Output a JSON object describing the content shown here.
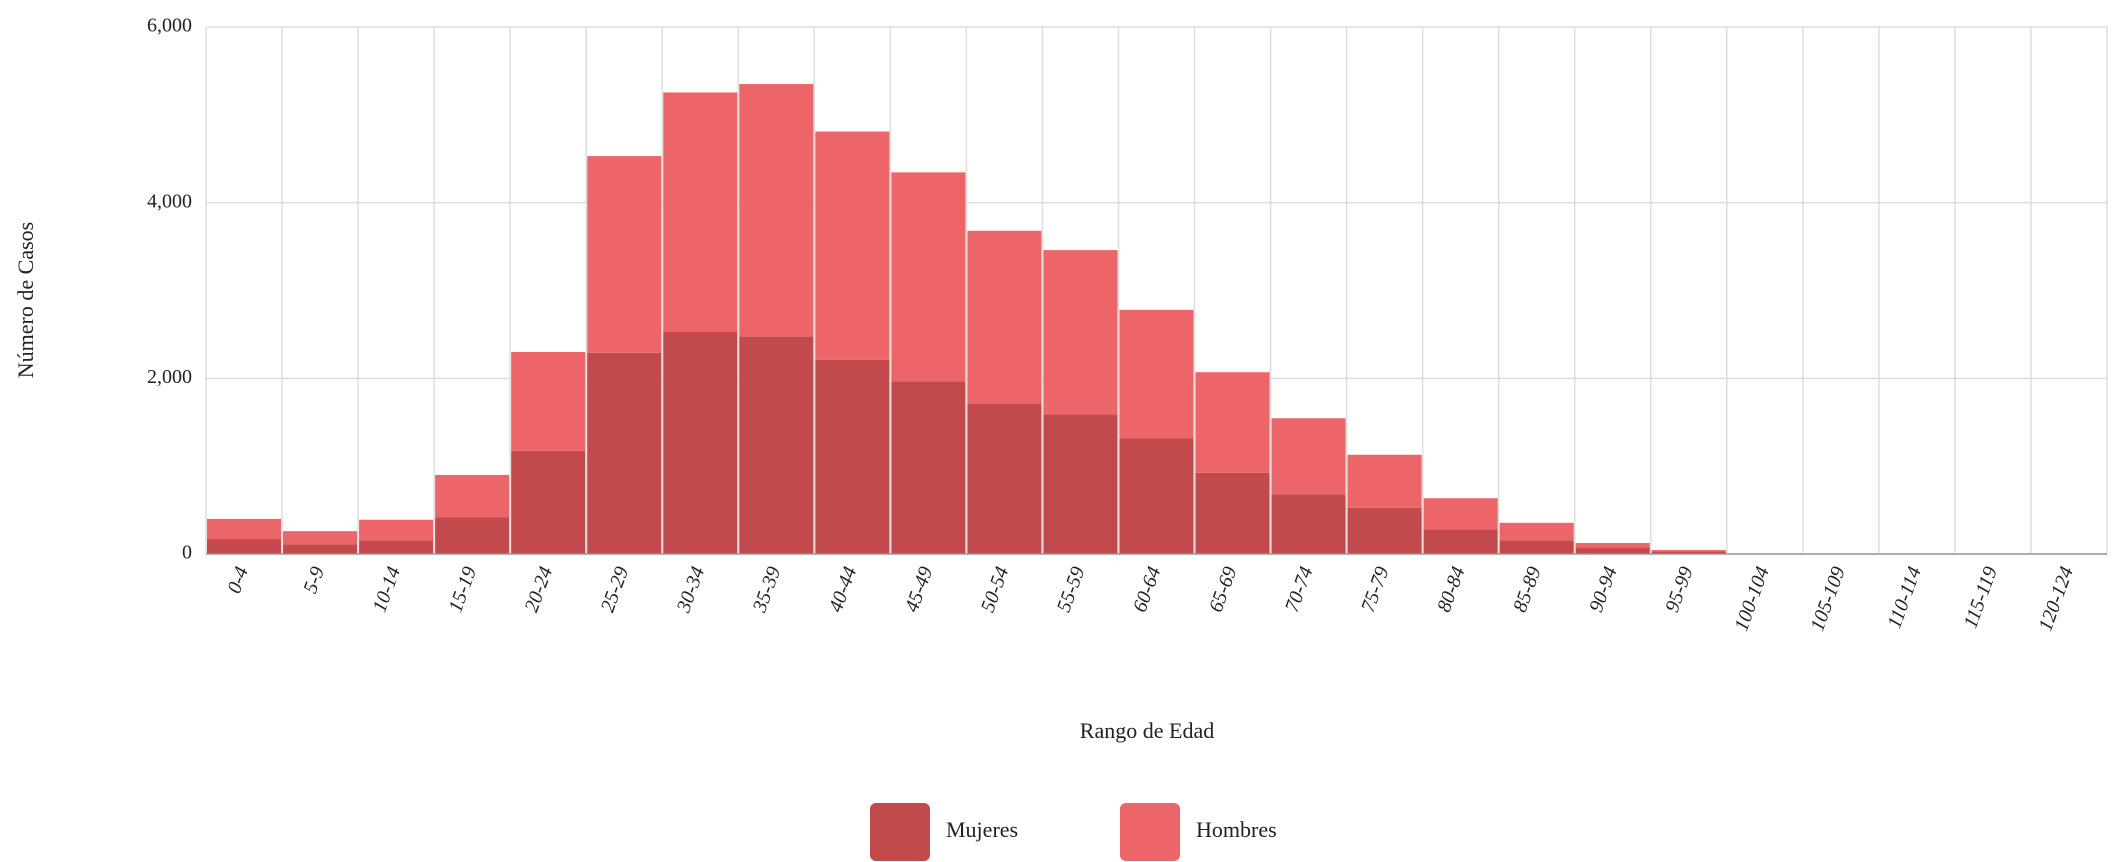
{
  "chart_data": {
    "type": "stacked-bar",
    "xlabel": "Rango de Edad",
    "ylabel": "Número de Casos",
    "categories": [
      "0-4",
      "5-9",
      "10-14",
      "15-19",
      "20-24",
      "25-29",
      "30-34",
      "35-39",
      "40-44",
      "45-49",
      "50-54",
      "55-59",
      "60-64",
      "65-69",
      "70-74",
      "75-79",
      "80-84",
      "85-89",
      "90-94",
      "95-99",
      "100-104",
      "105-109",
      "110-114",
      "115-119",
      "120-124"
    ],
    "series": [
      {
        "name": "Mujeres",
        "color": "#c24a4d",
        "values": [
          170,
          110,
          155,
          420,
          1175,
          2290,
          2535,
          2475,
          2210,
          1965,
          1715,
          1590,
          1315,
          925,
          680,
          525,
          280,
          155,
          75,
          30,
          0,
          0,
          0,
          0,
          0
        ]
      },
      {
        "name": "Hombres",
        "color": "#ec6568",
        "values": [
          230,
          150,
          235,
          480,
          1125,
          2240,
          2720,
          2875,
          2600,
          2380,
          1965,
          1870,
          1465,
          1145,
          865,
          605,
          355,
          200,
          50,
          15,
          0,
          0,
          0,
          0,
          0
        ]
      }
    ],
    "ylim": [
      0,
      6000
    ],
    "yticks": [
      0,
      {
        "value": 2000,
        "label": "2,000"
      },
      {
        "value": 4000,
        "label": "4,000"
      },
      {
        "value": 6000,
        "label": "6,000"
      }
    ],
    "grid": true,
    "legend": "bottom"
  }
}
